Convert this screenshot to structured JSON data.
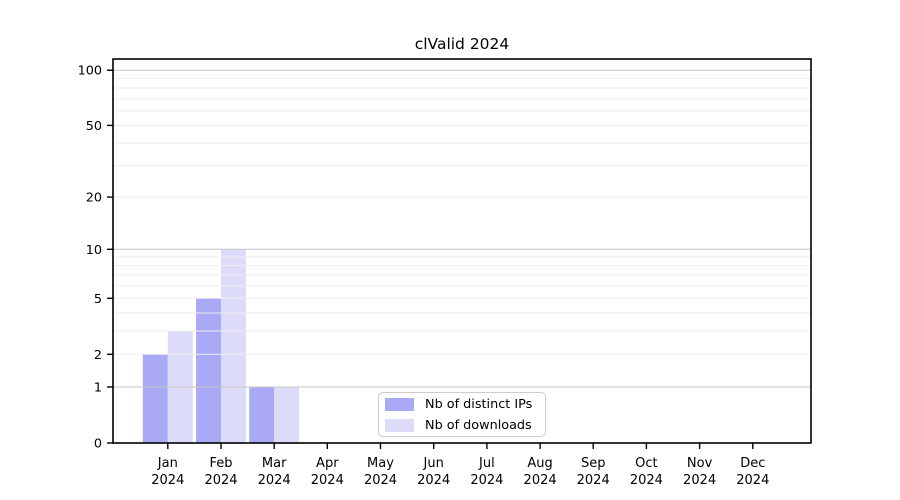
{
  "chart_data": {
    "type": "bar",
    "title": "clValid 2024",
    "x_tick_labels": [
      [
        "Jan",
        "2024"
      ],
      [
        "Feb",
        "2024"
      ],
      [
        "Mar",
        "2024"
      ],
      [
        "Apr",
        "2024"
      ],
      [
        "May",
        "2024"
      ],
      [
        "Jun",
        "2024"
      ],
      [
        "Jul",
        "2024"
      ],
      [
        "Aug",
        "2024"
      ],
      [
        "Sep",
        "2024"
      ],
      [
        "Oct",
        "2024"
      ],
      [
        "Nov",
        "2024"
      ],
      [
        "Dec",
        "2024"
      ]
    ],
    "series": [
      {
        "name": "Nb of distinct IPs",
        "color": "#a9a9f6",
        "values": [
          2,
          5,
          1,
          0,
          0,
          0,
          0,
          0,
          0,
          0,
          0,
          0
        ]
      },
      {
        "name": "Nb of downloads",
        "color": "#dcdcfa",
        "values": [
          3,
          10,
          1,
          0,
          0,
          0,
          0,
          0,
          0,
          0,
          0,
          0
        ]
      }
    ],
    "y_scale": "log1p",
    "ylim": [
      0,
      115
    ],
    "y_ticks": [
      0,
      1,
      2,
      5,
      10,
      20,
      50,
      100
    ],
    "minor_gridlines": [
      2,
      3,
      4,
      5,
      6,
      7,
      8,
      9,
      20,
      30,
      40,
      50,
      60,
      70,
      80,
      90
    ],
    "major_gridlines": [
      1,
      10,
      100
    ],
    "grid": "on",
    "legend_position": "lower center"
  },
  "colors": {
    "spine": "#000000",
    "minor_grid": "#ededed",
    "major_grid": "#c6c6c6",
    "legend_border": "#cccccc",
    "background": "#ffffff"
  }
}
